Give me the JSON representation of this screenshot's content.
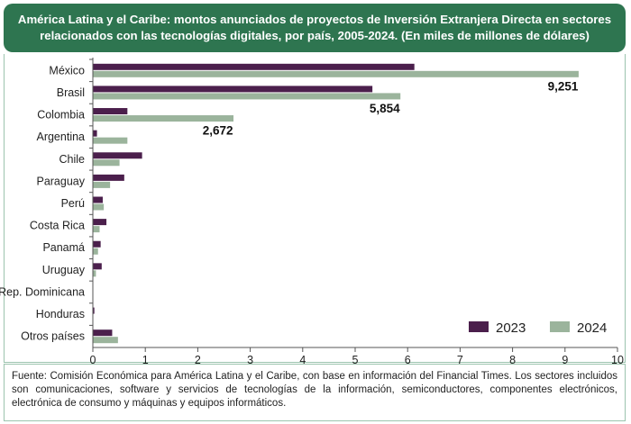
{
  "title": "América Latina y el Caribe: montos anunciados de proyectos de Inversión Extranjera Directa en sectores relacionados con las tecnologías digitales, por país, 2005-2024. (En miles de millones de dólares)",
  "source": "Fuente: Comisión Económica para América Latina y el Caribe, con base en información del Financial Times. Los sectores incluidos son comunicaciones, software y servicios de tecnologías de la información, semiconductores, componentes electrónicos, electrónica de consumo y máquinas y equipos informáticos.",
  "colors": {
    "series2023": "#4b1f4c",
    "series2024": "#9bb49c",
    "header": "#2e7550"
  },
  "chart_data": {
    "type": "bar",
    "orientation": "horizontal",
    "categories": [
      "México",
      "Brasil",
      "Colombia",
      "Argentina",
      "Chile",
      "Paraguay",
      "Perú",
      "Costa Rica",
      "Panamá",
      "Uruguay",
      "Rep. Dominicana",
      "Honduras",
      "Otros países"
    ],
    "series": [
      {
        "name": "2023",
        "values": [
          6.12,
          5.32,
          0.65,
          0.07,
          0.93,
          0.59,
          0.18,
          0.25,
          0.14,
          0.16,
          0.0,
          0.02,
          0.36
        ]
      },
      {
        "name": "2024",
        "values": [
          9.251,
          5.854,
          2.672,
          0.65,
          0.5,
          0.32,
          0.2,
          0.12,
          0.09,
          0.05,
          0.0,
          0.0,
          0.47
        ]
      }
    ],
    "data_labels": [
      {
        "category": "México",
        "series": "2024",
        "text": "9,251"
      },
      {
        "category": "Brasil",
        "series": "2024",
        "text": "5,854"
      },
      {
        "category": "Colombia",
        "series": "2024",
        "text": "2,672"
      }
    ],
    "xlim": [
      0,
      10
    ],
    "xticks": [
      0,
      1,
      2,
      3,
      4,
      5,
      6,
      7,
      8,
      9,
      10
    ],
    "xlabel": "",
    "ylabel": "",
    "legend": [
      "2023",
      "2024"
    ],
    "legend_position": "bottom-right",
    "grid": false
  }
}
